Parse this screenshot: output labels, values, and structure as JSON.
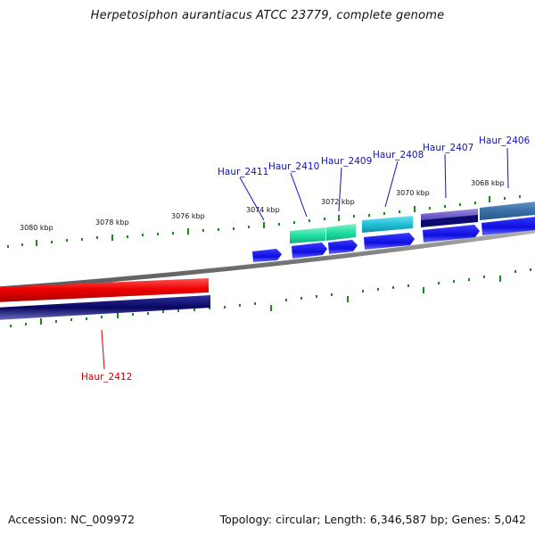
{
  "title": "Herpetosiphon aurantiacus ATCC 23779, complete genome",
  "footer": {
    "accession": "Accession: NC_009972",
    "summary": "Topology: circular; Length: 6,346,587 bp; Genes: 5,042"
  },
  "colors": {
    "tick": "#1a8a1a",
    "blue_label": "#1010c0",
    "red_label": "#cc0000",
    "backbone": "#888888",
    "gene_blue": "#1414e6",
    "gene_red": "#ee1111",
    "gene_navy": "#0a0a70"
  },
  "ticks": [
    {
      "label": "3080 kbp"
    },
    {
      "label": "3078 kbp"
    },
    {
      "label": "3076 kbp"
    },
    {
      "label": "3074 kbp"
    },
    {
      "label": "3072 kbp"
    },
    {
      "label": "3070 kbp"
    },
    {
      "label": "3068 kbp"
    }
  ],
  "genes": [
    {
      "name": "Haur_2406",
      "color": "blue"
    },
    {
      "name": "Haur_2407",
      "color": "blue"
    },
    {
      "name": "Haur_2408",
      "color": "blue"
    },
    {
      "name": "Haur_2409",
      "color": "blue"
    },
    {
      "name": "Haur_2410",
      "color": "blue"
    },
    {
      "name": "Haur_2411",
      "color": "blue"
    },
    {
      "name": "Haur_2412",
      "color": "red"
    }
  ]
}
